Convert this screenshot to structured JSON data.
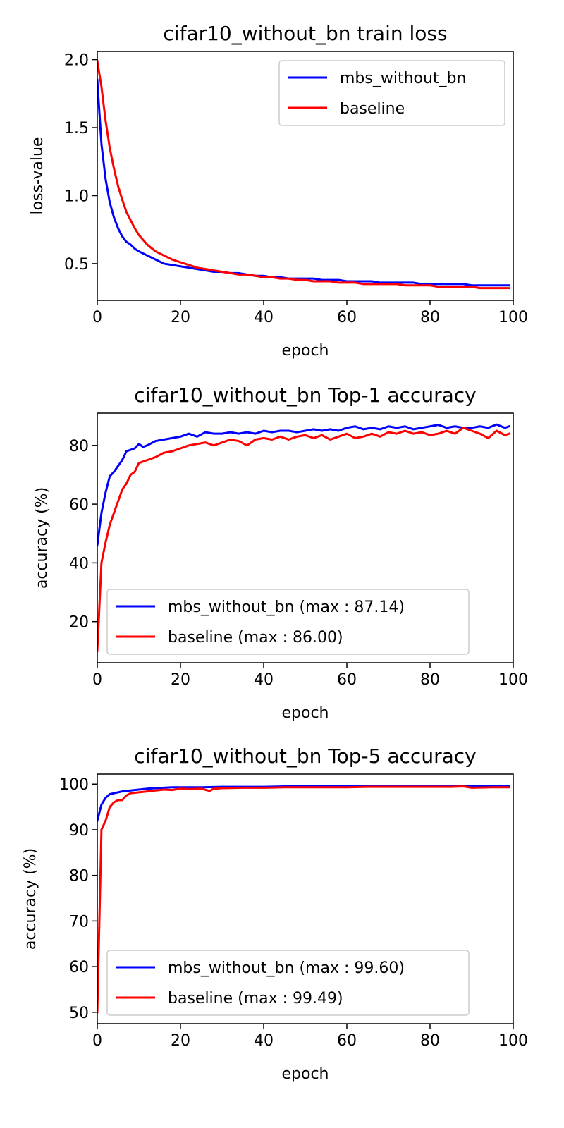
{
  "colors": {
    "series_primary": "#0000ff",
    "series_secondary": "#ff0000",
    "axes": "#000000",
    "legend_border": "#cccccc",
    "background": "#ffffff"
  },
  "chart_data": [
    {
      "type": "line",
      "title": "cifar10_without_bn train loss",
      "xlabel": "epoch",
      "ylabel": "loss-value",
      "xlim": [
        0,
        100
      ],
      "ylim": [
        0.23,
        2.06
      ],
      "xticks": [
        0,
        20,
        40,
        60,
        80,
        100
      ],
      "yticks": [
        0.5,
        1.0,
        1.5,
        2.0
      ],
      "ytick_labels": [
        "0.5",
        "1.0",
        "1.5",
        "2.0"
      ],
      "grid": false,
      "legend_position": "top-right",
      "series": [
        {
          "name": "mbs_without_bn",
          "color": "#0000ff",
          "x": [
            0,
            1,
            2,
            3,
            4,
            5,
            6,
            7,
            8,
            9,
            10,
            12,
            14,
            16,
            18,
            20,
            22,
            24,
            26,
            28,
            30,
            32,
            34,
            36,
            38,
            40,
            42,
            44,
            46,
            48,
            50,
            52,
            54,
            56,
            58,
            60,
            62,
            64,
            66,
            68,
            70,
            72,
            74,
            76,
            78,
            80,
            82,
            84,
            86,
            88,
            90,
            92,
            94,
            96,
            98,
            99
          ],
          "values": [
            1.85,
            1.38,
            1.12,
            0.95,
            0.84,
            0.76,
            0.7,
            0.66,
            0.64,
            0.61,
            0.59,
            0.56,
            0.53,
            0.5,
            0.49,
            0.48,
            0.47,
            0.46,
            0.45,
            0.44,
            0.44,
            0.43,
            0.43,
            0.42,
            0.41,
            0.41,
            0.4,
            0.4,
            0.39,
            0.39,
            0.39,
            0.39,
            0.38,
            0.38,
            0.38,
            0.37,
            0.37,
            0.37,
            0.37,
            0.36,
            0.36,
            0.36,
            0.36,
            0.36,
            0.35,
            0.35,
            0.35,
            0.35,
            0.35,
            0.35,
            0.34,
            0.34,
            0.34,
            0.34,
            0.34,
            0.34
          ]
        },
        {
          "name": "baseline",
          "color": "#ff0000",
          "x": [
            0,
            1,
            2,
            3,
            4,
            5,
            6,
            7,
            8,
            9,
            10,
            12,
            14,
            16,
            18,
            20,
            22,
            24,
            26,
            28,
            30,
            32,
            34,
            36,
            38,
            40,
            42,
            44,
            46,
            48,
            50,
            52,
            54,
            56,
            58,
            60,
            62,
            64,
            66,
            68,
            70,
            72,
            74,
            76,
            78,
            80,
            82,
            84,
            86,
            88,
            90,
            92,
            94,
            96,
            98,
            99
          ],
          "values": [
            1.99,
            1.8,
            1.55,
            1.35,
            1.2,
            1.07,
            0.97,
            0.88,
            0.82,
            0.76,
            0.71,
            0.64,
            0.59,
            0.56,
            0.53,
            0.51,
            0.49,
            0.47,
            0.46,
            0.45,
            0.44,
            0.43,
            0.42,
            0.42,
            0.41,
            0.4,
            0.4,
            0.39,
            0.39,
            0.38,
            0.38,
            0.37,
            0.37,
            0.37,
            0.36,
            0.36,
            0.36,
            0.35,
            0.35,
            0.35,
            0.35,
            0.35,
            0.34,
            0.34,
            0.34,
            0.34,
            0.33,
            0.33,
            0.33,
            0.33,
            0.33,
            0.32,
            0.32,
            0.32,
            0.32,
            0.32
          ]
        }
      ]
    },
    {
      "type": "line",
      "title": "cifar10_without_bn Top-1 accuracy",
      "xlabel": "epoch",
      "ylabel": "accuracy (%)",
      "xlim": [
        0,
        100
      ],
      "ylim": [
        6,
        91
      ],
      "xticks": [
        0,
        20,
        40,
        60,
        80,
        100
      ],
      "yticks": [
        20,
        40,
        60,
        80
      ],
      "ytick_labels": [
        "20",
        "40",
        "60",
        "80"
      ],
      "grid": false,
      "legend_position": "bottom-left",
      "series": [
        {
          "name": "mbs_without_bn (max : 87.14)",
          "color": "#0000ff",
          "x": [
            0,
            1,
            2,
            3,
            4,
            5,
            6,
            7,
            8,
            9,
            10,
            11,
            12,
            14,
            16,
            18,
            20,
            22,
            24,
            26,
            28,
            30,
            32,
            34,
            36,
            38,
            40,
            42,
            44,
            46,
            48,
            50,
            52,
            54,
            56,
            58,
            60,
            62,
            64,
            66,
            68,
            70,
            72,
            74,
            76,
            78,
            80,
            82,
            84,
            86,
            88,
            90,
            92,
            94,
            96,
            98,
            99
          ],
          "values": [
            46,
            57,
            64,
            69.5,
            71,
            73,
            75,
            78,
            78.5,
            79,
            80.5,
            79.5,
            80,
            81.5,
            82,
            82.5,
            83,
            84,
            83,
            84.5,
            84,
            84,
            84.5,
            84,
            84.5,
            84,
            85,
            84.5,
            85,
            85,
            84.5,
            85,
            85.5,
            85,
            85.5,
            85,
            86,
            86.5,
            85.5,
            86,
            85.5,
            86.5,
            86,
            86.5,
            85.5,
            86,
            86.5,
            87,
            86,
            86.5,
            86,
            86,
            86.5,
            86,
            87.14,
            86,
            86.5
          ]
        },
        {
          "name": "baseline (max : 86.00)",
          "color": "#ff0000",
          "x": [
            0,
            1,
            2,
            3,
            4,
            5,
            6,
            7,
            8,
            9,
            10,
            11,
            12,
            14,
            16,
            18,
            20,
            22,
            24,
            26,
            28,
            30,
            32,
            34,
            36,
            38,
            40,
            42,
            44,
            46,
            48,
            50,
            52,
            54,
            56,
            58,
            60,
            62,
            64,
            66,
            68,
            70,
            72,
            74,
            76,
            78,
            80,
            82,
            84,
            86,
            88,
            90,
            92,
            94,
            96,
            98,
            99
          ],
          "values": [
            10,
            40,
            47,
            53,
            57,
            61,
            65,
            67,
            70,
            71,
            74,
            74.5,
            75,
            76,
            77.5,
            78,
            79,
            80,
            80.5,
            81,
            80,
            81,
            82,
            81.5,
            80,
            82,
            82.5,
            82,
            83,
            82,
            83,
            83.5,
            82.5,
            83.5,
            82,
            83,
            84,
            82.5,
            83,
            84,
            83,
            84.5,
            84,
            85,
            84,
            84.5,
            83.5,
            84,
            85,
            84,
            86,
            85,
            84,
            82.5,
            85,
            83.5,
            84
          ]
        }
      ]
    },
    {
      "type": "line",
      "title": "cifar10_without_bn Top-5 accuracy",
      "xlabel": "epoch",
      "ylabel": "accuracy (%)",
      "xlim": [
        0,
        100
      ],
      "ylim": [
        47.5,
        102.2
      ],
      "xticks": [
        0,
        20,
        40,
        60,
        80,
        100
      ],
      "yticks": [
        50,
        60,
        70,
        80,
        90,
        100
      ],
      "ytick_labels": [
        "50",
        "60",
        "70",
        "80",
        "90",
        "100"
      ],
      "grid": false,
      "legend_position": "bottom-left",
      "series": [
        {
          "name": "mbs_without_bn (max : 99.60)",
          "color": "#0000ff",
          "x": [
            0,
            1,
            2,
            3,
            4,
            5,
            6,
            7,
            8,
            10,
            12,
            14,
            16,
            18,
            20,
            25,
            30,
            35,
            40,
            45,
            50,
            55,
            60,
            65,
            70,
            75,
            80,
            85,
            90,
            95,
            99
          ],
          "values": [
            92,
            95.5,
            97,
            97.8,
            98,
            98.2,
            98.4,
            98.5,
            98.6,
            98.8,
            99,
            99.1,
            99.2,
            99.3,
            99.3,
            99.3,
            99.4,
            99.4,
            99.4,
            99.5,
            99.5,
            99.5,
            99.5,
            99.5,
            99.5,
            99.5,
            99.5,
            99.6,
            99.5,
            99.5,
            99.5
          ]
        },
        {
          "name": "baseline (max : 99.49)",
          "color": "#ff0000",
          "x": [
            0,
            1,
            2,
            3,
            4,
            5,
            6,
            7,
            8,
            10,
            12,
            14,
            16,
            18,
            20,
            22,
            25,
            27,
            28,
            30,
            35,
            40,
            45,
            50,
            55,
            60,
            65,
            70,
            75,
            80,
            85,
            88,
            90,
            95,
            99
          ],
          "values": [
            50,
            90,
            92,
            95,
            96,
            96.5,
            96.5,
            97.5,
            98,
            98.2,
            98.4,
            98.6,
            98.8,
            98.7,
            99,
            98.9,
            99,
            98.5,
            99,
            99.1,
            99.2,
            99.2,
            99.3,
            99.3,
            99.3,
            99.3,
            99.4,
            99.4,
            99.4,
            99.4,
            99.4,
            99.49,
            99.2,
            99.3,
            99.3
          ]
        }
      ]
    }
  ]
}
